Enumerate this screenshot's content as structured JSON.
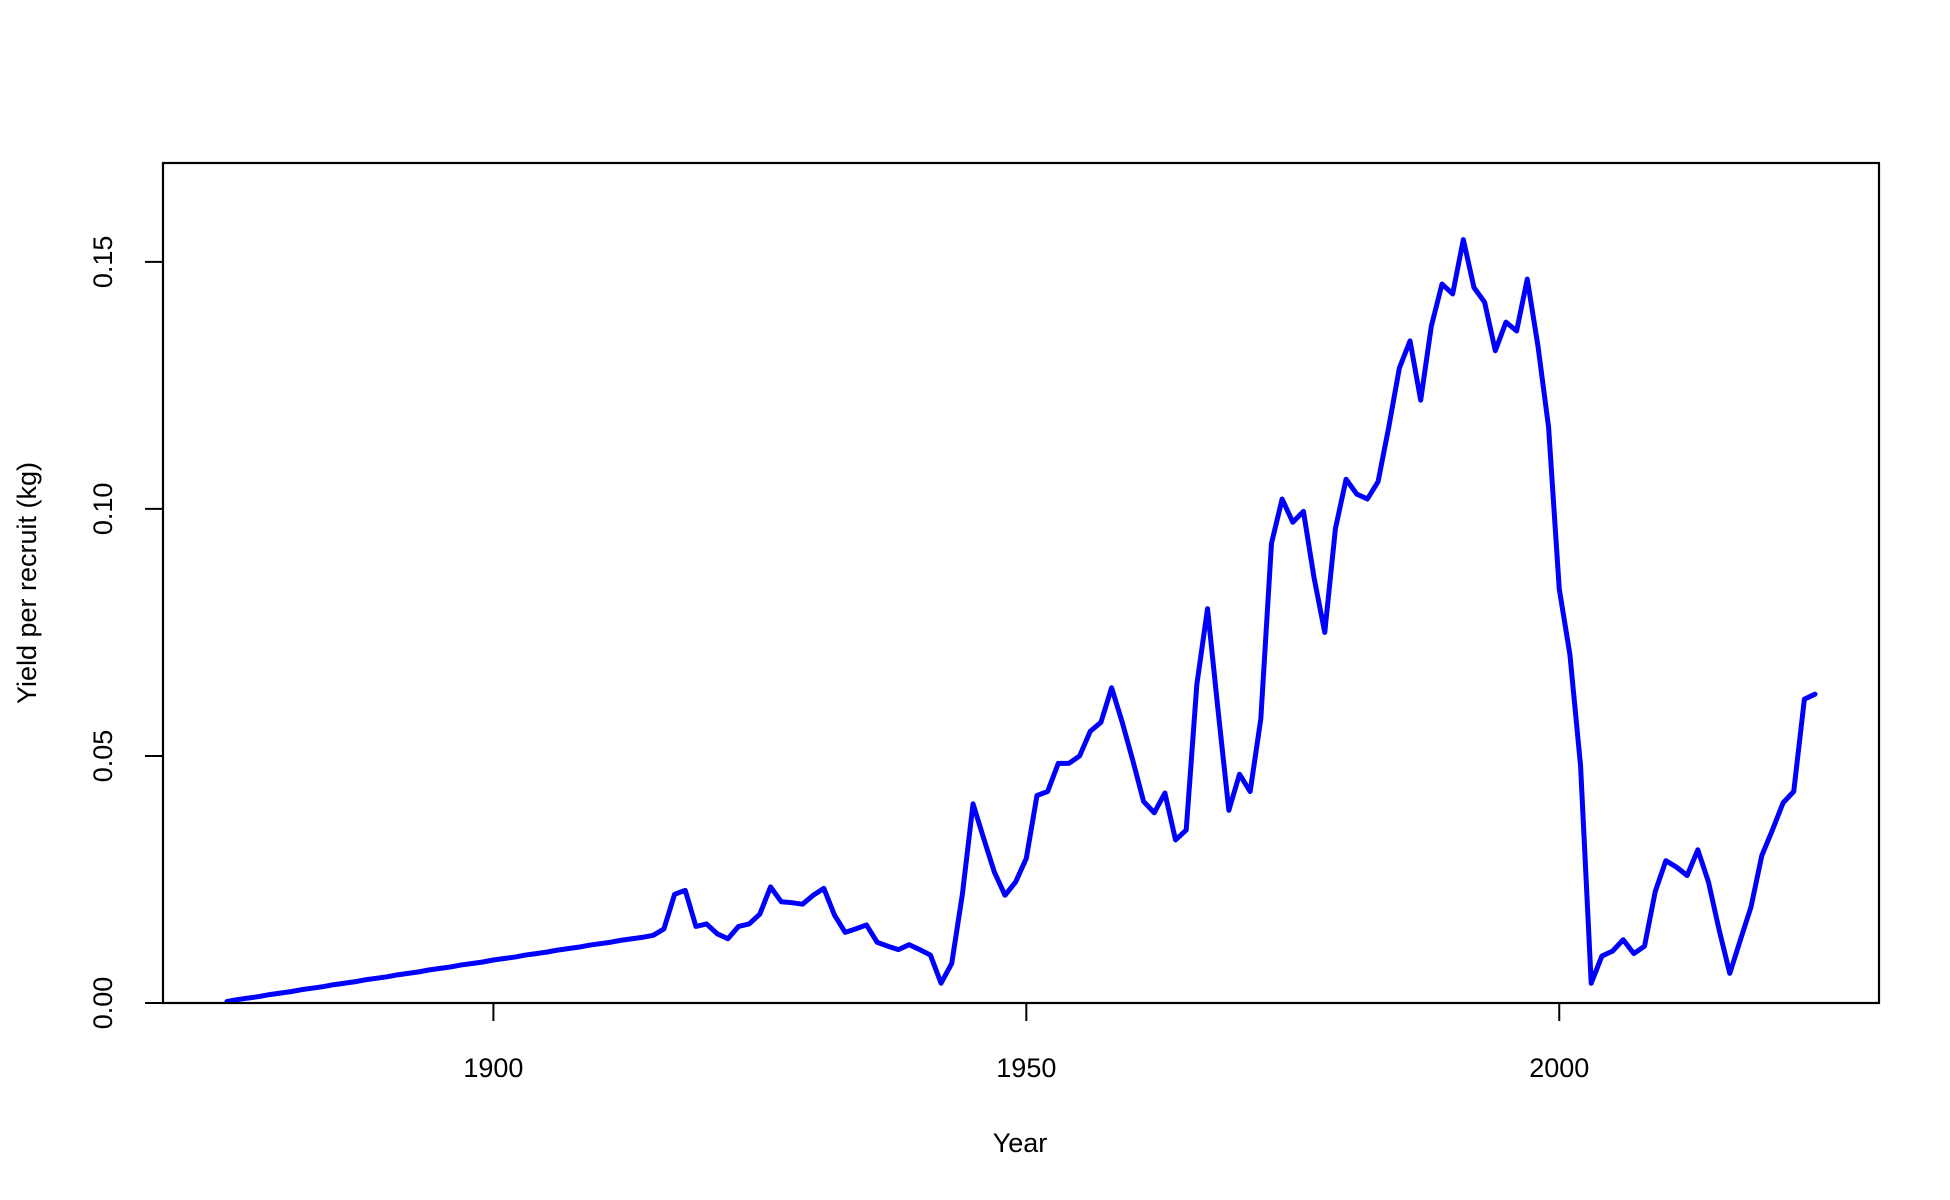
{
  "chart_data": {
    "type": "line",
    "title": "",
    "xlabel": "Year",
    "ylabel": "Yield per recruit (kg)",
    "xlim": [
      1869,
      2030
    ],
    "ylim": [
      0.0,
      0.17
    ],
    "x_ticks": [
      1900,
      1950,
      2000
    ],
    "x_tick_labels": [
      "1900",
      "1950",
      "2000"
    ],
    "y_ticks": [
      0.0,
      0.05,
      0.1,
      0.15
    ],
    "y_tick_labels": [
      "0.00",
      "0.05",
      "0.10",
      "0.15"
    ],
    "grid": false,
    "legend": "none",
    "series": [
      {
        "name": "Yield per recruit",
        "color": "#0000FF",
        "x": [
          1875,
          1876,
          1877,
          1878,
          1879,
          1880,
          1881,
          1882,
          1883,
          1884,
          1885,
          1886,
          1887,
          1888,
          1889,
          1890,
          1891,
          1892,
          1893,
          1894,
          1895,
          1896,
          1897,
          1898,
          1899,
          1900,
          1901,
          1902,
          1903,
          1904,
          1905,
          1906,
          1907,
          1908,
          1909,
          1910,
          1911,
          1912,
          1913,
          1914,
          1915,
          1916,
          1917,
          1918,
          1919,
          1920,
          1921,
          1922,
          1923,
          1924,
          1925,
          1926,
          1927,
          1928,
          1929,
          1930,
          1931,
          1932,
          1933,
          1934,
          1935,
          1936,
          1937,
          1938,
          1939,
          1940,
          1941,
          1942,
          1943,
          1944,
          1945,
          1946,
          1947,
          1948,
          1949,
          1950,
          1951,
          1952,
          1953,
          1954,
          1955,
          1956,
          1957,
          1958,
          1959,
          1960,
          1961,
          1962,
          1963,
          1964,
          1965,
          1966,
          1967,
          1968,
          1969,
          1970,
          1971,
          1972,
          1973,
          1974,
          1975,
          1976,
          1977,
          1978,
          1979,
          1980,
          1981,
          1982,
          1983,
          1984,
          1985,
          1986,
          1987,
          1988,
          1989,
          1990,
          1991,
          1992,
          1993,
          1994,
          1995,
          1996,
          1997,
          1998,
          1999,
          2000,
          2001,
          2002,
          2003,
          2004,
          2005,
          2006,
          2007,
          2008,
          2009,
          2010,
          2011,
          2012,
          2013,
          2014,
          2015,
          2016,
          2017,
          2018,
          2019,
          2020,
          2021,
          2022,
          2023,
          2024
        ],
        "values": [
          0.0003,
          0.0007,
          0.001,
          0.0013,
          0.0017,
          0.002,
          0.0023,
          0.0027,
          0.003,
          0.0033,
          0.0037,
          0.004,
          0.0043,
          0.0047,
          0.005,
          0.0053,
          0.0057,
          0.006,
          0.0063,
          0.0067,
          0.007,
          0.0073,
          0.0077,
          0.008,
          0.0083,
          0.0087,
          0.009,
          0.0093,
          0.0097,
          0.01,
          0.0103,
          0.0107,
          0.011,
          0.0113,
          0.0117,
          0.012,
          0.0123,
          0.0127,
          0.013,
          0.0133,
          0.0137,
          0.015,
          0.022,
          0.0228,
          0.0155,
          0.016,
          0.014,
          0.013,
          0.0155,
          0.016,
          0.018,
          0.0235,
          0.0205,
          0.0203,
          0.02,
          0.0218,
          0.0232,
          0.0178,
          0.0143,
          0.015,
          0.0158,
          0.0123,
          0.0115,
          0.0108,
          0.0118,
          0.0108,
          0.0097,
          0.004,
          0.008,
          0.022,
          0.0403,
          0.0333,
          0.0265,
          0.0218,
          0.0245,
          0.0293,
          0.042,
          0.0428,
          0.0485,
          0.0485,
          0.05,
          0.055,
          0.0568,
          0.0638,
          0.0568,
          0.049,
          0.0408,
          0.0385,
          0.0425,
          0.033,
          0.035,
          0.0645,
          0.0798,
          0.059,
          0.039,
          0.0463,
          0.0428,
          0.0575,
          0.093,
          0.102,
          0.0973,
          0.0995,
          0.086,
          0.075,
          0.096,
          0.106,
          0.103,
          0.102,
          0.1055,
          0.1165,
          0.1285,
          0.134,
          0.122,
          0.137,
          0.1455,
          0.1435,
          0.1545,
          0.1448,
          0.1418,
          0.132,
          0.1378,
          0.136,
          0.1465,
          0.133,
          0.1165,
          0.0838,
          0.0705,
          0.048,
          0.004,
          0.0095,
          0.0105,
          0.0128,
          0.01,
          0.0115,
          0.0225,
          0.0288,
          0.0275,
          0.0258,
          0.031,
          0.0245,
          0.0148,
          0.006,
          0.0128,
          0.0195,
          0.0298,
          0.035,
          0.0405,
          0.0428,
          0.0615,
          0.0625
        ]
      }
    ]
  }
}
